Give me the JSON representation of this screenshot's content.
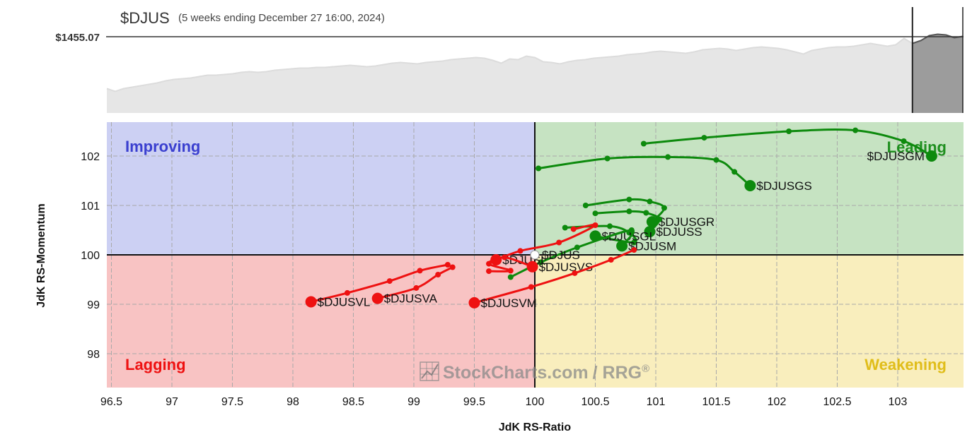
{
  "header": {
    "symbol": "$DJUS",
    "subtitle": "(5 weeks ending December 27 16:00, 2024)",
    "price_label": "$1455.07"
  },
  "watermark": {
    "text": "StockCharts.com",
    "suffix": "/ RRG",
    "mark": "®",
    "icon": "stockcharts-grid-logo"
  },
  "chart_data": {
    "type": "scatter",
    "title": "$DJUS",
    "subtitle": "(5 weeks ending December 27 16:00, 2024)",
    "xlabel": "JdK RS-Ratio",
    "ylabel": "JdK RS-Momentum",
    "xlim": [
      96.5,
      103.05
    ],
    "ylim": [
      97.3,
      102.7
    ],
    "x_ticks": [
      96.5,
      97,
      97.5,
      98,
      98.5,
      99,
      99.5,
      100,
      100.5,
      101,
      101.5,
      102,
      102.5,
      103
    ],
    "x_tick_labels": [
      "96.5",
      "97",
      "97.5",
      "98",
      "98.5",
      "99",
      "99.5",
      "100",
      "100.5",
      "101",
      "101.5",
      "102",
      "102.5",
      "103"
    ],
    "y_ticks": [
      98,
      99,
      100,
      101,
      102
    ],
    "y_tick_labels": [
      "98",
      "99",
      "100",
      "101",
      "102"
    ],
    "center": [
      100,
      100
    ],
    "grid": true,
    "quadrants": [
      {
        "name": "Improving",
        "position": "top-left",
        "color": "#3a3fcf",
        "fill": "#ccd0f3"
      },
      {
        "name": "Leading",
        "position": "top-right",
        "color": "#1f8f1f",
        "fill": "#c6e3c2"
      },
      {
        "name": "Lagging",
        "position": "bottom-left",
        "color": "#ee1111",
        "fill": "#f8c3c3"
      },
      {
        "name": "Weakening",
        "position": "bottom-right",
        "color": "#e0bd1a",
        "fill": "#f9eebd"
      }
    ],
    "benchmark": {
      "name": "$DJUS",
      "x": 100,
      "y": 100
    },
    "series": [
      {
        "name": "$DJUSGM",
        "color": "#0d8a0d",
        "points": [
          [
            100.9,
            102.25
          ],
          [
            101.4,
            102.37
          ],
          [
            102.1,
            102.5
          ],
          [
            102.65,
            102.52
          ],
          [
            103.05,
            102.3
          ],
          [
            103.28,
            102.0
          ]
        ]
      },
      {
        "name": "$DJUSGS",
        "color": "#0d8a0d",
        "points": [
          [
            100.03,
            101.75
          ],
          [
            100.6,
            101.95
          ],
          [
            101.1,
            101.98
          ],
          [
            101.5,
            101.92
          ],
          [
            101.65,
            101.68
          ],
          [
            101.78,
            101.4
          ]
        ]
      },
      {
        "name": "$DJUSGR",
        "color": "#0d8a0d",
        "points": [
          [
            100.42,
            101.0
          ],
          [
            100.78,
            101.12
          ],
          [
            100.95,
            101.08
          ],
          [
            101.07,
            100.95
          ],
          [
            100.97,
            100.67
          ]
        ]
      },
      {
        "name": "$DJUSS",
        "color": "#0d8a0d",
        "points": [
          [
            100.5,
            100.84
          ],
          [
            100.78,
            100.88
          ],
          [
            100.92,
            100.85
          ],
          [
            101.03,
            100.72
          ],
          [
            100.95,
            100.47
          ]
        ]
      },
      {
        "name": "$DJUSGL",
        "color": "#0d8a0d",
        "points": [
          [
            100.25,
            100.55
          ],
          [
            100.62,
            100.58
          ],
          [
            100.78,
            100.45
          ],
          [
            100.82,
            100.25
          ],
          [
            100.5,
            100.38
          ]
        ]
      },
      {
        "name": "$DJUSM",
        "color": "#0d8a0d",
        "points": [
          [
            99.8,
            99.55
          ],
          [
            100.05,
            99.85
          ],
          [
            100.35,
            100.15
          ],
          [
            100.8,
            100.5
          ],
          [
            100.72,
            100.18
          ]
        ]
      },
      {
        "name": "$DJUSL",
        "color": "#ee1111",
        "points": [
          [
            100.32,
            100.52
          ],
          [
            100.5,
            100.6
          ],
          [
            100.2,
            100.25
          ],
          [
            99.88,
            100.08
          ],
          [
            99.68,
            99.9
          ]
        ]
      },
      {
        "name": "$DJUSVS",
        "color": "#ee1111",
        "points": [
          [
            99.62,
            99.67
          ],
          [
            99.8,
            99.68
          ],
          [
            99.62,
            99.82
          ],
          [
            99.75,
            99.95
          ],
          [
            99.98,
            99.76
          ]
        ]
      },
      {
        "name": "$DJUSVL",
        "color": "#ee1111",
        "points": [
          [
            99.28,
            99.8
          ],
          [
            99.05,
            99.68
          ],
          [
            98.8,
            99.47
          ],
          [
            98.45,
            99.23
          ],
          [
            98.15,
            99.05
          ]
        ]
      },
      {
        "name": "$DJUSVA",
        "color": "#ee1111",
        "points": [
          [
            99.32,
            99.75
          ],
          [
            99.2,
            99.6
          ],
          [
            99.02,
            99.33
          ],
          [
            98.7,
            99.12
          ]
        ]
      },
      {
        "name": "$DJUSVM",
        "color": "#ee1111",
        "points": [
          [
            100.82,
            100.1
          ],
          [
            100.63,
            99.9
          ],
          [
            100.33,
            99.63
          ],
          [
            99.97,
            99.35
          ],
          [
            99.5,
            99.03
          ]
        ]
      }
    ]
  },
  "price_chart": {
    "reference_price": 1455.07,
    "values": [
      72,
      68,
      72,
      74,
      76,
      78,
      80,
      83,
      85,
      86,
      87,
      89,
      91,
      91,
      92,
      93,
      95,
      96,
      95,
      96,
      98,
      99,
      100,
      101,
      101,
      102,
      102,
      103,
      104,
      105,
      104,
      103,
      104,
      106,
      108,
      109,
      108,
      107,
      109,
      110,
      111,
      113,
      114,
      115,
      116,
      115,
      112,
      108,
      114,
      113,
      118,
      116,
      110,
      109,
      107,
      110,
      112,
      113,
      115,
      116,
      117,
      118,
      120,
      121,
      122,
      124,
      125,
      124,
      123,
      122,
      124,
      127,
      128,
      129,
      128,
      126,
      128,
      130,
      131,
      130,
      129,
      127,
      124,
      121,
      126,
      128,
      130,
      131,
      131,
      132,
      134,
      136,
      134,
      132,
      134,
      143,
      136,
      140,
      147,
      149,
      148,
      144,
      146
    ],
    "last_week_start_index": 96
  }
}
